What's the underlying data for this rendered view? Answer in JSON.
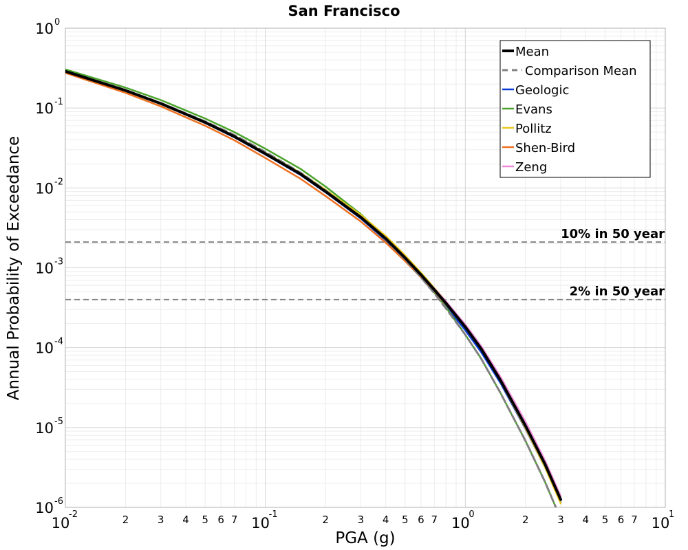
{
  "chart_data": {
    "type": "line",
    "title": "San Francisco",
    "xlabel": "PGA (g)",
    "ylabel": "Annual Probability of Exceedance",
    "xscale": "log",
    "yscale": "log",
    "xlim": [
      0.01,
      10
    ],
    "ylim": [
      1e-06,
      1
    ],
    "grid": true,
    "legend_position": "top-right",
    "x_major_ticks": [
      {
        "base": "10",
        "exp": "-2"
      },
      {
        "base": "10",
        "exp": "-1"
      },
      {
        "base": "10",
        "exp": "0"
      },
      {
        "base": "10",
        "exp": "1"
      }
    ],
    "y_major_ticks": [
      {
        "base": "10",
        "exp": "-6"
      },
      {
        "base": "10",
        "exp": "-5"
      },
      {
        "base": "10",
        "exp": "-4"
      },
      {
        "base": "10",
        "exp": "-3"
      },
      {
        "base": "10",
        "exp": "-2"
      },
      {
        "base": "10",
        "exp": "-1"
      },
      {
        "base": "10",
        "exp": "0"
      }
    ],
    "x_minor_tick_labels": [
      "2",
      "3",
      "4",
      "5",
      "6",
      "7"
    ],
    "reference_lines": [
      {
        "label": "10% in 50 year",
        "y": 0.0021,
        "color": "#808080"
      },
      {
        "label": "2% in 50 year",
        "y": 0.0004,
        "color": "#808080"
      }
    ],
    "series": [
      {
        "name": "Geologic",
        "color": "#0a3bd6",
        "dash": false,
        "width": 2.5,
        "x": [
          0.01,
          0.02,
          0.03,
          0.05,
          0.07,
          0.1,
          0.15,
          0.2,
          0.3,
          0.4,
          0.5,
          0.6,
          0.7,
          0.8,
          1.0,
          1.2,
          1.5,
          2.0,
          2.5,
          3.0
        ],
        "y": [
          0.285,
          0.164,
          0.113,
          0.065,
          0.043,
          0.0262,
          0.0145,
          0.0088,
          0.00415,
          0.0022,
          0.00125,
          0.00076,
          0.00049,
          0.00033,
          0.000165,
          8.8e-05,
          3.6e-05,
          9.6e-06,
          3.2e-06,
          1.15e-06
        ]
      },
      {
        "name": "Evans",
        "color": "#4aa32a",
        "dash": false,
        "width": 2.5,
        "x": [
          0.01,
          0.02,
          0.03,
          0.05,
          0.07,
          0.1,
          0.15,
          0.2,
          0.3,
          0.4,
          0.5,
          0.6,
          0.7,
          0.8,
          1.0,
          1.2,
          1.5,
          2.0,
          2.5,
          3.0
        ],
        "y": [
          0.305,
          0.18,
          0.126,
          0.074,
          0.05,
          0.031,
          0.0173,
          0.0104,
          0.0047,
          0.0024,
          0.00132,
          0.00078,
          0.00049,
          0.00032,
          0.000145,
          7.3e-05,
          2.7e-05,
          6.8e-06,
          2.1e-06,
          7.2e-07
        ]
      },
      {
        "name": "Pollitz",
        "color": "#e8c81c",
        "dash": false,
        "width": 2.5,
        "x": [
          0.01,
          0.02,
          0.03,
          0.05,
          0.07,
          0.1,
          0.15,
          0.2,
          0.3,
          0.4,
          0.5,
          0.6,
          0.7,
          0.8,
          1.0,
          1.2,
          1.5,
          2.0,
          2.5,
          3.0
        ],
        "y": [
          0.29,
          0.167,
          0.115,
          0.067,
          0.045,
          0.0276,
          0.0154,
          0.0095,
          0.0046,
          0.0025,
          0.00143,
          0.00087,
          0.00056,
          0.00038,
          0.000185,
          9.7e-05,
          3.8e-05,
          9.8e-06,
          3.2e-06,
          1.12e-06
        ]
      },
      {
        "name": "Shen-Bird",
        "color": "#ee7020",
        "dash": false,
        "width": 2.5,
        "x": [
          0.01,
          0.02,
          0.03,
          0.05,
          0.07,
          0.1,
          0.15,
          0.2,
          0.3,
          0.4,
          0.5,
          0.6,
          0.7,
          0.8,
          1.0,
          1.2,
          1.5,
          2.0,
          2.5,
          3.0
        ],
        "y": [
          0.275,
          0.155,
          0.105,
          0.06,
          0.0395,
          0.0237,
          0.013,
          0.0079,
          0.0038,
          0.00206,
          0.00121,
          0.00076,
          0.00051,
          0.00035,
          0.000178,
          9.6e-05,
          4e-05,
          1.08e-05,
          3.6e-06,
          1.28e-06
        ]
      },
      {
        "name": "Zeng",
        "color": "#f08ad8",
        "dash": false,
        "width": 2.5,
        "x": [
          0.01,
          0.02,
          0.03,
          0.05,
          0.07,
          0.1,
          0.15,
          0.2,
          0.3,
          0.4,
          0.5,
          0.6,
          0.7,
          0.8,
          1.0,
          1.2,
          1.5,
          2.0,
          2.5,
          3.0
        ],
        "y": [
          0.288,
          0.166,
          0.114,
          0.066,
          0.044,
          0.0268,
          0.0149,
          0.009,
          0.0043,
          0.00232,
          0.00134,
          0.00083,
          0.00055,
          0.00038,
          0.000195,
          0.000105,
          4.3e-05,
          1.18e-05,
          3.9e-06,
          1.38e-06
        ]
      },
      {
        "name": "Comparison Mean",
        "color": "#808080",
        "dash": true,
        "width": 3,
        "x": [
          0.01,
          0.02,
          0.03,
          0.05,
          0.07,
          0.1,
          0.15,
          0.2,
          0.3,
          0.4,
          0.5,
          0.6,
          0.7,
          0.8,
          1.0,
          1.2,
          1.5,
          2.0,
          2.5,
          3.0
        ],
        "y": [
          0.29,
          0.168,
          0.116,
          0.068,
          0.046,
          0.0282,
          0.0155,
          0.0093,
          0.0043,
          0.00225,
          0.00127,
          0.00076,
          0.00048,
          0.00031,
          0.000145,
          7.3e-05,
          2.7e-05,
          6.8e-06,
          2.1e-06,
          7.2e-07
        ]
      },
      {
        "name": "Mean",
        "color": "#000000",
        "dash": false,
        "width": 4,
        "x": [
          0.01,
          0.02,
          0.03,
          0.05,
          0.07,
          0.1,
          0.15,
          0.2,
          0.3,
          0.4,
          0.5,
          0.6,
          0.7,
          0.8,
          1.0,
          1.2,
          1.5,
          2.0,
          2.5,
          3.0
        ],
        "y": [
          0.288,
          0.166,
          0.114,
          0.066,
          0.044,
          0.0268,
          0.0149,
          0.009,
          0.0043,
          0.00232,
          0.00133,
          0.00082,
          0.00053,
          0.00036,
          0.000182,
          9.7e-05,
          3.9e-05,
          1.05e-05,
          3.5e-06,
          1.25e-06
        ]
      }
    ],
    "legend_order": [
      "Mean",
      "Comparison Mean",
      "Geologic",
      "Evans",
      "Pollitz",
      "Shen-Bird",
      "Zeng"
    ]
  }
}
